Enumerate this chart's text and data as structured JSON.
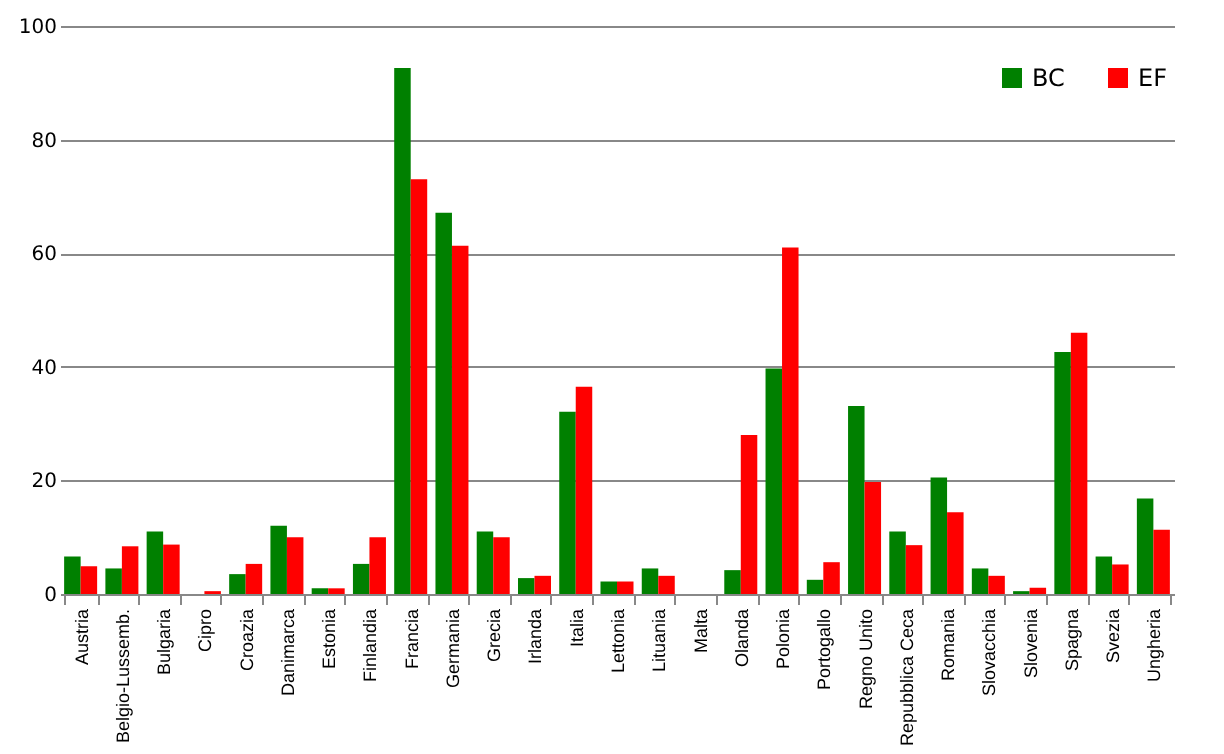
{
  "chart_data": {
    "type": "bar",
    "categories": [
      "Austria",
      "Belgio-Lussemb.",
      "Bulgaria",
      "Cipro",
      "Croazia",
      "Danimarca",
      "Estonia",
      "Finlandia",
      "Francia",
      "Germania",
      "Grecia",
      "Irlanda",
      "Italia",
      "Lettonia",
      "Lituania",
      "Malta",
      "Olanda",
      "Polonia",
      "Portogallo",
      "Regno Unito",
      "Repubblica Ceca",
      "Romania",
      "Slovacchia",
      "Slovenia",
      "Spagna",
      "Svezia",
      "Ungheria"
    ],
    "series": [
      {
        "name": "BC",
        "color": "#008000",
        "values": [
          6.6,
          4.5,
          11,
          0,
          3.5,
          12,
          1,
          5.3,
          92.6,
          67.1,
          11,
          2.8,
          32.1,
          2.2,
          4.5,
          0,
          4.2,
          39.7,
          2.5,
          33.1,
          11,
          20.5,
          4.5,
          0.5,
          42.6,
          6.6,
          16.8
        ]
      },
      {
        "name": "EF",
        "color": "#ff0000",
        "values": [
          4.9,
          8.4,
          8.7,
          0.5,
          5.3,
          10,
          1,
          10,
          73,
          61.3,
          10,
          3.2,
          36.5,
          2.2,
          3.2,
          0,
          28,
          61,
          5.6,
          19.7,
          8.6,
          14.4,
          3.2,
          1.1,
          46,
          5.2,
          11.3
        ]
      }
    ],
    "ylim": [
      0,
      100
    ],
    "yticks": [
      0,
      20,
      40,
      60,
      80,
      100
    ],
    "grid": "y",
    "legend": "top right"
  }
}
